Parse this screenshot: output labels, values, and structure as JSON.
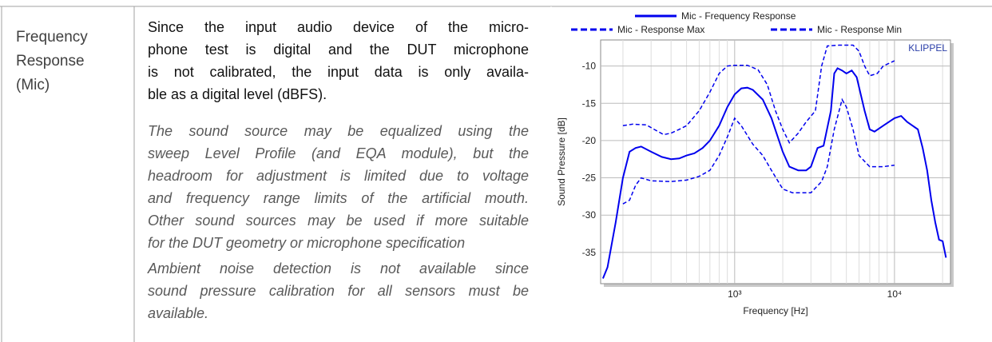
{
  "row": {
    "label": [
      "Frequency",
      "Response",
      "(Mic)"
    ],
    "paragraphs": [
      {
        "style": "normal",
        "lines": [
          "Since the input audio device of the micro-",
          "phone test is digital and the DUT microphone",
          "is not calibrated, the input data is only availa-",
          "ble as a digital level (dBFS)."
        ]
      },
      {
        "style": "italic",
        "lines": [
          "The sound source may be equalized using the",
          "sweep Level Profile (and EQA module), but the",
          "headroom for adjustment is limited due to voltage",
          "and frequency range limits of the artificial mouth.",
          "Other sound sources may be used if more suitable",
          "for the DUT geometry or microphone specification"
        ]
      },
      {
        "style": "italic",
        "lines": [
          "Ambient noise detection is not available since",
          "sound pressure calibration for all sensors must be",
          "available."
        ]
      }
    ]
  },
  "chart": {
    "type": "line",
    "xlabel": "Frequency  [Hz]",
    "ylabel": "Sound Pressure  [dB]",
    "annotation": "KLIPPEL",
    "xscale": "log",
    "grid": true,
    "xlim": [
      145,
      22400
    ],
    "ylim": [
      -39.2,
      -6.5
    ],
    "xticks": [
      {
        "value": 1000,
        "label": "10³"
      },
      {
        "value": 10000,
        "label": "10⁴"
      }
    ],
    "xminor": [
      200,
      300,
      400,
      500,
      600,
      700,
      800,
      900,
      2000,
      3000,
      4000,
      5000,
      6000,
      7000,
      8000,
      9000,
      20000
    ],
    "yticks": [
      -10,
      -15,
      -20,
      -25,
      -30,
      -35
    ],
    "series": [
      {
        "name": "Mic - Frequency Response",
        "color": "#0000ee",
        "style": "solid",
        "x": [
          150,
          160,
          180,
          200,
          220,
          240,
          260,
          300,
          350,
          400,
          450,
          500,
          560,
          630,
          700,
          800,
          900,
          1000,
          1100,
          1200,
          1300,
          1500,
          1700,
          2000,
          2200,
          2500,
          2800,
          3000,
          3300,
          3600,
          4000,
          4200,
          4400,
          4700,
          5000,
          5400,
          5800,
          6500,
          7000,
          7500,
          8500,
          10000,
          11000,
          12000,
          14000,
          15000,
          16000,
          17000,
          18000,
          19000,
          20000,
          21000
        ],
        "values": [
          -38.5,
          -37,
          -31,
          -25,
          -21.5,
          -21,
          -20.8,
          -21.5,
          -22.2,
          -22.5,
          -22.4,
          -22,
          -21.7,
          -21,
          -20,
          -18,
          -15.5,
          -13.8,
          -13,
          -12.9,
          -13.2,
          -14.5,
          -17,
          -21.5,
          -23.5,
          -24,
          -24,
          -23.5,
          -21,
          -20.7,
          -16,
          -11,
          -10.3,
          -10.6,
          -11,
          -10.6,
          -11.5,
          -16,
          -18.5,
          -18.8,
          -18,
          -17,
          -16.7,
          -17.5,
          -18.5,
          -21,
          -24,
          -28,
          -31,
          -33.3,
          -33.5,
          -35.7
        ]
      },
      {
        "name": "Mic - Response Max",
        "color": "#0000ee",
        "style": "dashed",
        "x": [
          200,
          230,
          280,
          320,
          360,
          400,
          450,
          500,
          600,
          700,
          800,
          900,
          1000,
          1200,
          1400,
          1600,
          1800,
          2000,
          2200,
          2500,
          2800,
          3200,
          3500,
          3800,
          4500,
          5500,
          6000,
          6500,
          7000,
          7800,
          8500,
          10000
        ],
        "values": [
          -18,
          -17.8,
          -17.9,
          -18.6,
          -19.2,
          -19,
          -18.5,
          -18,
          -16,
          -13.5,
          -11,
          -10,
          -9.9,
          -9.9,
          -10.5,
          -12.5,
          -16,
          -18.5,
          -20.3,
          -19,
          -17.5,
          -16,
          -10,
          -7.3,
          -7.2,
          -7.2,
          -8,
          -10,
          -11.3,
          -11,
          -10,
          -9.3
        ]
      },
      {
        "name": "Mic - Response Min",
        "color": "#0000ee",
        "style": "dashed",
        "x": [
          200,
          220,
          240,
          260,
          300,
          400,
          500,
          600,
          700,
          800,
          900,
          1000,
          1100,
          1300,
          1500,
          1700,
          2000,
          2300,
          3000,
          3500,
          3800,
          4200,
          4700,
          5000,
          5500,
          6000,
          7000,
          8500,
          10000
        ],
        "values": [
          -28.5,
          -28,
          -26,
          -25,
          -25.4,
          -25.5,
          -25.3,
          -24.8,
          -24,
          -22,
          -19.5,
          -17,
          -18,
          -20.5,
          -22,
          -24,
          -26.5,
          -27,
          -27,
          -25.5,
          -23.5,
          -18.5,
          -14.5,
          -15.5,
          -18.5,
          -22,
          -23.5,
          -23.5,
          -23.3
        ]
      }
    ]
  }
}
